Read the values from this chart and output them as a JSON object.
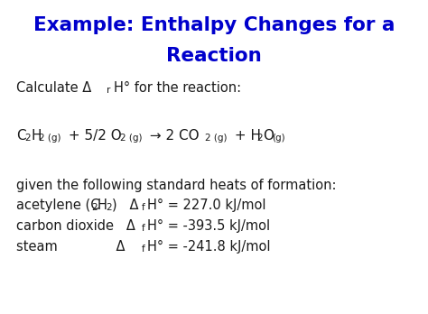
{
  "title_color": "#0000CC",
  "body_color": "#1a1a1a",
  "background_color": "#ffffff",
  "title_line1": "Example: Enthalpy Changes for a",
  "title_line2": "Reaction",
  "title_fontsize": 15.5,
  "body_fontsize": 10.5,
  "body_fontsize_sub": 7.5
}
